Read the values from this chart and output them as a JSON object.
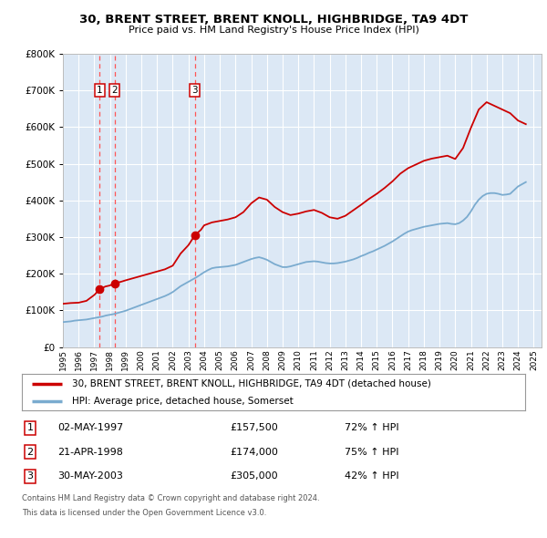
{
  "title": "30, BRENT STREET, BRENT KNOLL, HIGHBRIDGE, TA9 4DT",
  "subtitle": "Price paid vs. HM Land Registry's House Price Index (HPI)",
  "ylim": [
    0,
    800000
  ],
  "xlim_start": 1995,
  "xlim_end": 2025.5,
  "fig_bg_color": "#ffffff",
  "plot_bg_color": "#dce8f5",
  "grid_color": "#ffffff",
  "transactions": [
    {
      "num": 1,
      "date_str": "02-MAY-1997",
      "year": 1997.34,
      "price": 157500,
      "pct": "72%",
      "dir": "↑"
    },
    {
      "num": 2,
      "date_str": "21-APR-1998",
      "year": 1998.3,
      "price": 174000,
      "pct": "75%",
      "dir": "↑"
    },
    {
      "num": 3,
      "date_str": "30-MAY-2003",
      "year": 2003.41,
      "price": 305000,
      "pct": "42%",
      "dir": "↑"
    }
  ],
  "house_line_color": "#cc0000",
  "hpi_line_color": "#7aabcf",
  "dashed_line_color": "#ff5555",
  "legend_house_label": "30, BRENT STREET, BRENT KNOLL, HIGHBRIDGE, TA9 4DT (detached house)",
  "legend_hpi_label": "HPI: Average price, detached house, Somerset",
  "footer1": "Contains HM Land Registry data © Crown copyright and database right 2024.",
  "footer2": "This data is licensed under the Open Government Licence v3.0.",
  "hpi_data": {
    "years": [
      1995.0,
      1995.25,
      1995.5,
      1995.75,
      1996.0,
      1996.25,
      1996.5,
      1996.75,
      1997.0,
      1997.25,
      1997.5,
      1997.75,
      1998.0,
      1998.25,
      1998.5,
      1998.75,
      1999.0,
      1999.25,
      1999.5,
      1999.75,
      2000.0,
      2000.25,
      2000.5,
      2000.75,
      2001.0,
      2001.25,
      2001.5,
      2001.75,
      2002.0,
      2002.25,
      2002.5,
      2002.75,
      2003.0,
      2003.25,
      2003.5,
      2003.75,
      2004.0,
      2004.25,
      2004.5,
      2004.75,
      2005.0,
      2005.25,
      2005.5,
      2005.75,
      2006.0,
      2006.25,
      2006.5,
      2006.75,
      2007.0,
      2007.25,
      2007.5,
      2007.75,
      2008.0,
      2008.25,
      2008.5,
      2008.75,
      2009.0,
      2009.25,
      2009.5,
      2009.75,
      2010.0,
      2010.25,
      2010.5,
      2010.75,
      2011.0,
      2011.25,
      2011.5,
      2011.75,
      2012.0,
      2012.25,
      2012.5,
      2012.75,
      2013.0,
      2013.25,
      2013.5,
      2013.75,
      2014.0,
      2014.25,
      2014.5,
      2014.75,
      2015.0,
      2015.25,
      2015.5,
      2015.75,
      2016.0,
      2016.25,
      2016.5,
      2016.75,
      2017.0,
      2017.25,
      2017.5,
      2017.75,
      2018.0,
      2018.25,
      2018.5,
      2018.75,
      2019.0,
      2019.25,
      2019.5,
      2019.75,
      2020.0,
      2020.25,
      2020.5,
      2020.75,
      2021.0,
      2021.25,
      2021.5,
      2021.75,
      2022.0,
      2022.25,
      2022.5,
      2022.75,
      2023.0,
      2023.25,
      2023.5,
      2023.75,
      2024.0,
      2024.25,
      2024.5
    ],
    "values": [
      68000,
      69000,
      70000,
      72000,
      73000,
      74000,
      75000,
      77000,
      79000,
      81000,
      83000,
      86000,
      88000,
      90000,
      93000,
      96000,
      99000,
      103000,
      107000,
      111000,
      115000,
      119000,
      123000,
      127000,
      131000,
      135000,
      139000,
      144000,
      150000,
      158000,
      166000,
      172000,
      178000,
      184000,
      190000,
      197000,
      204000,
      210000,
      215000,
      217000,
      218000,
      219000,
      220000,
      222000,
      224000,
      228000,
      232000,
      236000,
      240000,
      243000,
      245000,
      242000,
      238000,
      232000,
      226000,
      222000,
      218000,
      218000,
      220000,
      223000,
      226000,
      229000,
      232000,
      233000,
      234000,
      233000,
      231000,
      229000,
      228000,
      228000,
      229000,
      231000,
      233000,
      236000,
      239000,
      243000,
      248000,
      252000,
      257000,
      261000,
      266000,
      271000,
      276000,
      282000,
      288000,
      295000,
      302000,
      309000,
      315000,
      319000,
      322000,
      325000,
      328000,
      330000,
      332000,
      334000,
      336000,
      337000,
      338000,
      336000,
      335000,
      338000,
      345000,
      355000,
      370000,
      388000,
      402000,
      412000,
      418000,
      420000,
      420000,
      418000,
      415000,
      416000,
      418000,
      428000,
      438000,
      444000,
      450000
    ]
  },
  "house_data": {
    "years": [
      1995.0,
      1995.5,
      1996.0,
      1996.5,
      1997.0,
      1997.34,
      1997.7,
      1998.0,
      1998.3,
      1998.7,
      1999.0,
      1999.5,
      2000.0,
      2000.5,
      2001.0,
      2001.5,
      2002.0,
      2002.5,
      2003.0,
      2003.41,
      2003.8,
      2004.0,
      2004.5,
      2005.0,
      2005.5,
      2006.0,
      2006.5,
      2007.0,
      2007.5,
      2008.0,
      2008.5,
      2009.0,
      2009.5,
      2010.0,
      2010.5,
      2011.0,
      2011.5,
      2012.0,
      2012.5,
      2013.0,
      2013.5,
      2014.0,
      2014.5,
      2015.0,
      2015.5,
      2016.0,
      2016.5,
      2017.0,
      2017.5,
      2018.0,
      2018.5,
      2019.0,
      2019.5,
      2020.0,
      2020.5,
      2021.0,
      2021.5,
      2022.0,
      2022.5,
      2023.0,
      2023.5,
      2024.0,
      2024.5
    ],
    "values": [
      118000,
      120000,
      121000,
      126000,
      142000,
      157500,
      165000,
      168000,
      174000,
      178000,
      182000,
      188000,
      194000,
      200000,
      206000,
      212000,
      222000,
      255000,
      278000,
      305000,
      320000,
      332000,
      340000,
      344000,
      348000,
      354000,
      368000,
      392000,
      408000,
      402000,
      382000,
      368000,
      360000,
      364000,
      370000,
      374000,
      366000,
      354000,
      350000,
      358000,
      373000,
      388000,
      404000,
      418000,
      434000,
      452000,
      473000,
      488000,
      498000,
      508000,
      514000,
      518000,
      522000,
      513000,
      543000,
      598000,
      648000,
      668000,
      658000,
      648000,
      638000,
      618000,
      608000
    ]
  }
}
